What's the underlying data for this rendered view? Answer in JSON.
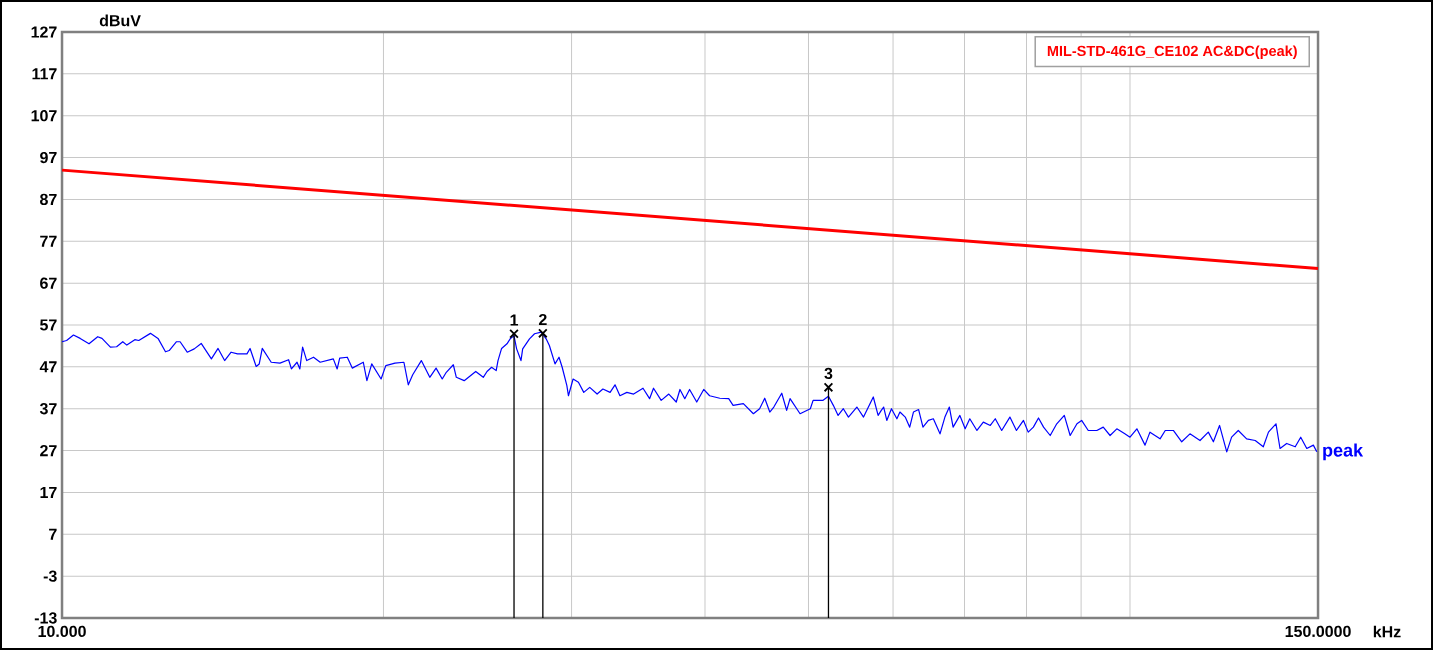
{
  "chart_data": {
    "type": "line",
    "xlabel": "kHz",
    "ylabel": "dBuV",
    "log": "x",
    "xlim": [
      10,
      150
    ],
    "ylim": [
      -13,
      127
    ],
    "xticks": [
      {
        "value": 10,
        "label": "10.000"
      },
      {
        "value": 20,
        "label": null
      },
      {
        "value": 30,
        "label": null
      },
      {
        "value": 40,
        "label": null
      },
      {
        "value": 50,
        "label": null
      },
      {
        "value": 60,
        "label": null
      },
      {
        "value": 70,
        "label": null
      },
      {
        "value": 80,
        "label": null
      },
      {
        "value": 90,
        "label": null
      },
      {
        "value": 100,
        "label": null
      },
      {
        "value": 150,
        "label": "150.0000"
      }
    ],
    "yticks": [
      127,
      117,
      107,
      97,
      87,
      77,
      67,
      57,
      47,
      37,
      27,
      17,
      7,
      -3,
      -13
    ],
    "grid": true,
    "legend": "top right",
    "series": [
      {
        "name": "MIL-STD-461G_CE102 AC&DC(peak)",
        "color": "#ff0000",
        "x": [
          10,
          150
        ],
        "values": [
          94,
          70.5
        ]
      },
      {
        "name": "peak",
        "color": "#0000ff",
        "x": [
          10,
          10.1,
          10.25,
          10.4,
          10.6,
          10.8,
          10.9,
          11.1,
          11.25,
          11.4,
          11.5,
          11.7,
          11.8,
          12.1,
          12.3,
          12.5,
          12.6,
          12.8,
          12.9,
          13.1,
          13.3,
          13.5,
          13.8,
          14,
          14.2,
          14.4,
          14.6,
          14.9,
          15,
          15.2,
          15.3,
          15.4,
          15.7,
          16,
          16.3,
          16.4,
          16.6,
          16.7,
          16.8,
          16.95,
          17.2,
          17.45,
          17.95,
          18.1,
          18.2,
          18.5,
          18.7,
          19.15,
          19.3,
          19.5,
          19.9,
          20.1,
          20.5,
          20.9,
          21.1,
          21.3,
          21.7,
          22.1,
          22.4,
          22.7,
          22.9,
          23.25,
          23.4,
          23.8,
          24.4,
          24.8,
          25,
          25.25,
          25.5,
          25.6,
          25.8,
          26.1,
          26.3,
          26.5,
          26.65,
          26.9,
          27,
          27.4,
          27.7,
          28.1,
          28.4,
          28.6,
          28.95,
          29.2,
          29.4,
          29.7,
          29.8,
          30.1,
          30.45,
          30.8,
          31.2,
          31.7,
          32.1,
          32.6,
          32.95,
          33.3,
          33.8,
          34.3,
          35,
          35.5,
          35.8,
          36.4,
          37,
          37.6,
          37.9,
          38.3,
          38.7,
          39.3,
          39.9,
          40.4,
          41.3,
          42.1,
          42.5,
          43.45,
          44.4,
          45,
          45.5,
          46,
          46.4,
          47.2,
          47.7,
          48.05,
          49.1,
          50.2,
          50.5,
          51.6,
          52.2,
          52.75,
          53.3,
          53.9,
          54.5,
          55.5,
          56.3,
          57.5,
          58.1,
          58.5,
          58.8,
          59.2,
          59.8,
          60.5,
          60.9,
          61.6,
          62.2,
          62.7,
          63.4,
          64,
          64.75,
          65.45,
          66.4,
          67.1,
          67.75,
          68.3,
          69.3,
          70.1,
          70.8,
          71.9,
          72.9,
          74,
          74.8,
          75.85,
          77.2,
          78.3,
          79.5,
          80.3,
          81.2,
          82.1,
          83,
          84.2,
          85.4,
          86.8,
          87.9,
          89.2,
          90.1,
          91.4,
          93.1,
          94.4,
          95.8,
          97.2,
          98.9,
          100,
          101.5,
          103.3,
          104.4,
          106.7,
          107.9,
          109.8,
          111.8,
          113.8,
          116.3,
          118.4,
          119.7,
          121.3,
          123.2,
          124.5,
          126.3,
          128.6,
          131,
          133.3,
          134.8,
          137,
          138.2,
          140.2,
          142.8,
          144.5,
          146.4,
          148.5,
          149.6
        ],
        "values": [
          53,
          53.3,
          54.6,
          53.8,
          52.5,
          54.2,
          53.8,
          51.7,
          51.8,
          53,
          52.2,
          53.5,
          53.3,
          55,
          53.8,
          50.6,
          50.9,
          53,
          53,
          50.5,
          51.3,
          52.6,
          48.9,
          51.4,
          48.5,
          50.5,
          50.1,
          50.1,
          51.4,
          47.1,
          47.7,
          51.4,
          48.1,
          47.9,
          48.7,
          46.5,
          48.1,
          46.5,
          51.7,
          48.5,
          49.3,
          48.1,
          48.9,
          46.5,
          49.1,
          49.3,
          46.7,
          48.1,
          43.7,
          47.7,
          44.1,
          47.3,
          47.9,
          48.1,
          42.7,
          45.1,
          48.5,
          44.5,
          46.7,
          44.1,
          45.7,
          47.5,
          44.5,
          43.7,
          45.9,
          44.5,
          45.9,
          46.9,
          46.1,
          48.5,
          51.4,
          52.5,
          53.8,
          54.4,
          51.3,
          48.5,
          51.3,
          53.7,
          54.9,
          55.3,
          53.7,
          52.1,
          47.7,
          49.3,
          46.9,
          42.5,
          40.1,
          44.1,
          43.3,
          40.9,
          42.1,
          40.5,
          41.7,
          40.9,
          42.7,
          40.1,
          40.9,
          40.5,
          41.9,
          39.4,
          41.9,
          39,
          40.5,
          38.6,
          41.6,
          39.4,
          41.6,
          38.6,
          41.6,
          40.1,
          39.5,
          39.4,
          37.8,
          38.2,
          35.8,
          37,
          39.5,
          36.2,
          37.4,
          40.7,
          36.6,
          39.4,
          35.8,
          37,
          39,
          39,
          40,
          37.8,
          35.4,
          37,
          35,
          37.4,
          35,
          39.8,
          35.4,
          36.6,
          37.4,
          34.2,
          37,
          34.6,
          36.2,
          35,
          32.6,
          36.2,
          36.8,
          32.6,
          34.2,
          34.6,
          31,
          35,
          37.4,
          32.6,
          35.4,
          32.2,
          34.6,
          31.8,
          33.8,
          33,
          34.6,
          31.8,
          35,
          31.8,
          34.2,
          31.4,
          32.6,
          34.8,
          32.6,
          30.6,
          33.4,
          35.4,
          30.6,
          33.4,
          34.2,
          31.8,
          31.8,
          32.6,
          30.6,
          32.2,
          31,
          30.2,
          32.2,
          28.3,
          31.4,
          29.8,
          31.8,
          31.8,
          29.1,
          31,
          29.4,
          31.4,
          29.1,
          33,
          26.7,
          30.2,
          31.8,
          29.8,
          29.4,
          27.9,
          31.4,
          33.4,
          27.5,
          28.7,
          27.9,
          30.2,
          27.5,
          28.3,
          26.7
        ]
      },
      {
        "type": "lollipop",
        "color": "#000000",
        "marker": "cross",
        "x": [
          26.5,
          28.2,
          52.2
        ],
        "values": [
          54.9,
          55,
          42.1
        ]
      }
    ],
    "annotations": [
      {
        "text": "1",
        "x": 26.5,
        "y": 54.9
      },
      {
        "text": "2",
        "x": 28.2,
        "y": 55
      },
      {
        "text": "3",
        "x": 52.2,
        "y": 42.1
      }
    ]
  }
}
